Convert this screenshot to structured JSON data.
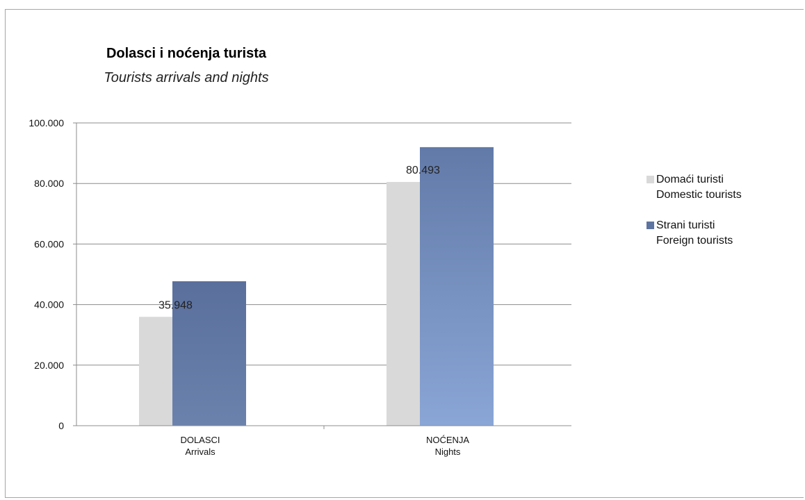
{
  "chart_data": {
    "type": "bar",
    "title": "Dolasci i noćenja turista",
    "subtitle": "Tourists arrivals and nights",
    "categories": [
      [
        "DOLASCI",
        "Arrivals"
      ],
      [
        "NOĆENJA",
        "Nights"
      ]
    ],
    "series": [
      {
        "name": [
          "Domaći turisti",
          "Domestic tourists"
        ],
        "values": [
          35948,
          80493
        ],
        "color": "#d9d9d9",
        "data_labels": [
          "35.948",
          "80.493"
        ]
      },
      {
        "name": [
          "Strani turisti",
          "Foreign tourists"
        ],
        "values": [
          47700,
          92000
        ],
        "color": "#5e74a0",
        "data_labels": [
          "",
          ""
        ]
      }
    ],
    "ylim": [
      0,
      100000
    ],
    "yticks": [
      {
        "value": 0,
        "label": "0"
      },
      {
        "value": 20000,
        "label": "20.000"
      },
      {
        "value": 40000,
        "label": "40.000"
      },
      {
        "value": 60000,
        "label": "60.000"
      },
      {
        "value": 80000,
        "label": "80.000"
      },
      {
        "value": 100000,
        "label": "100.000"
      }
    ],
    "grid": true,
    "legend": "right"
  }
}
